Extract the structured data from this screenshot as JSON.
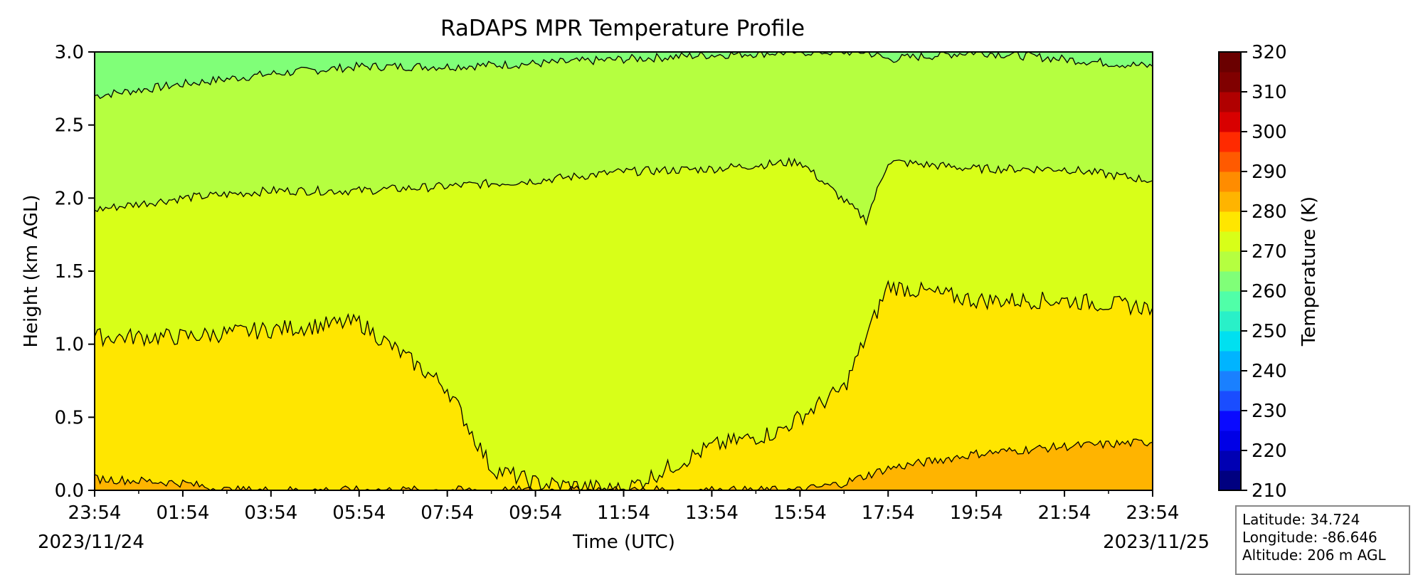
{
  "chart_data": {
    "type": "heatmap",
    "title": "RaDAPS MPR Temperature Profile",
    "xlabel": "Time (UTC)",
    "ylabel": "Height (km AGL)",
    "x_ticks": [
      "23:54",
      "01:54",
      "03:54",
      "05:54",
      "07:54",
      "09:54",
      "11:54",
      "13:54",
      "15:54",
      "17:54",
      "19:54",
      "21:54",
      "23:54"
    ],
    "x_range_hours": [
      0,
      24
    ],
    "start_date": "2023/11/24",
    "end_date": "2023/11/25",
    "y_ticks": [
      "0.0",
      "0.5",
      "1.0",
      "1.5",
      "2.0",
      "2.5",
      "3.0"
    ],
    "ylim": [
      0,
      3
    ],
    "colorbar": {
      "label": "Temperature (K)",
      "ticks": [
        "210",
        "220",
        "230",
        "240",
        "250",
        "260",
        "270",
        "280",
        "290",
        "300",
        "310",
        "320"
      ],
      "range": [
        210,
        320
      ],
      "level_step": 5,
      "colors": [
        "#000080",
        "#0000b3",
        "#0000e6",
        "#0a0aff",
        "#1a4dff",
        "#1a80ff",
        "#00b4ff",
        "#00e0f0",
        "#29f0c8",
        "#50ffa8",
        "#80ff78",
        "#b5ff40",
        "#d8ff18",
        "#ffe600",
        "#ffb400",
        "#ff8c00",
        "#ff5a00",
        "#ff2a00",
        "#d80000",
        "#b00000",
        "#800000",
        "#6a0000"
      ]
    },
    "contour_levels_K": [
      270,
      275,
      280,
      285
    ],
    "contour_heights_km": [
      {
        "level": "270 K",
        "hours": [
          0,
          2,
          4,
          6,
          8,
          10,
          12,
          14,
          16,
          17.5,
          18,
          20,
          22,
          24
        ],
        "height": [
          2.7,
          2.78,
          2.85,
          2.9,
          2.9,
          2.92,
          2.95,
          2.98,
          3.0,
          3.0,
          2.95,
          3.0,
          2.95,
          2.9
        ]
      },
      {
        "level": "275 K",
        "hours": [
          0,
          2,
          4,
          6,
          8,
          10,
          12,
          14,
          16,
          17.5,
          18,
          20,
          22,
          24
        ],
        "height": [
          1.92,
          2.0,
          2.05,
          2.05,
          2.08,
          2.12,
          2.18,
          2.2,
          2.25,
          1.85,
          2.25,
          2.2,
          2.2,
          2.12
        ]
      },
      {
        "level": "280 K",
        "hours": [
          0,
          2,
          4,
          6,
          8,
          9,
          10,
          12,
          14,
          15.5,
          17,
          18,
          20,
          22,
          24
        ],
        "height": [
          1.05,
          1.05,
          1.1,
          1.15,
          0.7,
          0.15,
          0.05,
          0.0,
          0.3,
          0.4,
          0.7,
          1.4,
          1.3,
          1.3,
          1.25
        ]
      },
      {
        "level": "285 K",
        "hours": [
          0,
          2,
          3,
          16,
          17,
          18,
          20,
          22,
          24
        ],
        "height": [
          0.08,
          0.05,
          0.0,
          0.0,
          0.05,
          0.15,
          0.25,
          0.3,
          0.33
        ]
      }
    ]
  },
  "info_box": {
    "latitude": "Latitude: 34.724",
    "longitude": "Longitude: -86.646",
    "altitude": "Altitude: 206 m AGL"
  }
}
